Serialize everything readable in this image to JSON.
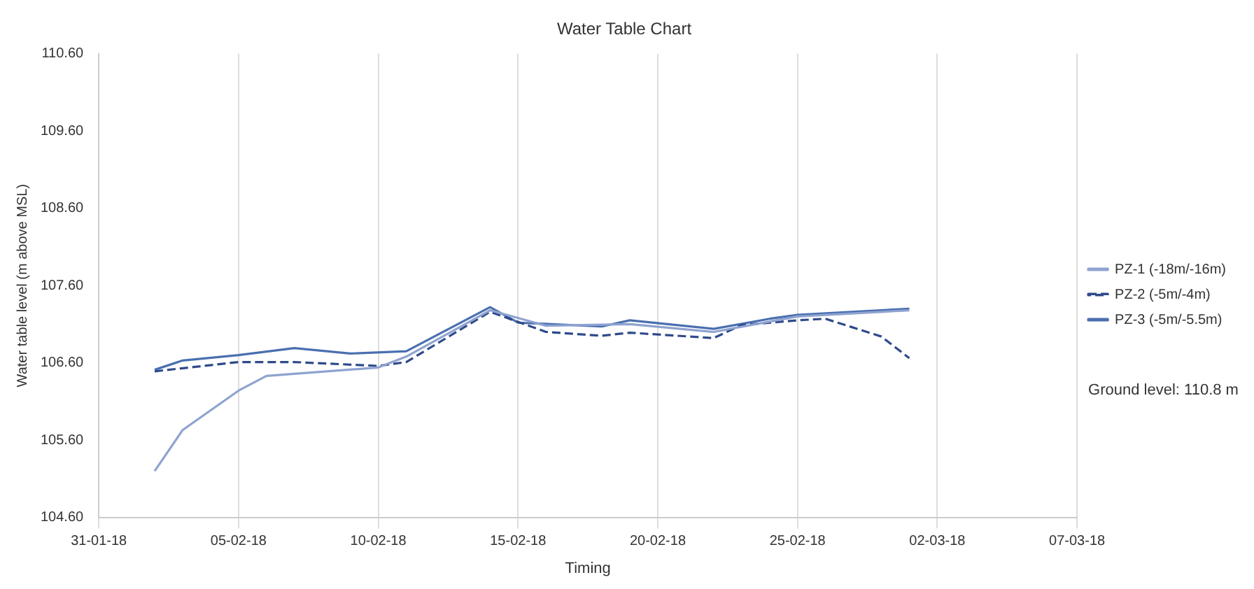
{
  "chart_data": {
    "type": "line",
    "title": "Water Table Chart",
    "xlabel": "Timing",
    "ylabel": "Water table level (m above MSL)",
    "xlim": [
      "--01-31",
      "--03-07"
    ],
    "xticks": [
      {
        "value": "--01-31",
        "label": "31-01-18"
      },
      {
        "value": "--02-05",
        "label": "05-02-18"
      },
      {
        "value": "--02-10",
        "label": "10-02-18"
      },
      {
        "value": "--02-15",
        "label": "15-02-18"
      },
      {
        "value": "--02-20",
        "label": "20-02-18"
      },
      {
        "value": "--02-25",
        "label": "25-02-18"
      },
      {
        "value": "--03-02",
        "label": "02-03-18"
      },
      {
        "value": "--03-07",
        "label": "07-03-18"
      }
    ],
    "ylim": [
      104.6,
      110.6
    ],
    "yticks": [
      {
        "value": 104.6,
        "label": "104.60"
      },
      {
        "value": 105.6,
        "label": "105.60"
      },
      {
        "value": 106.6,
        "label": "106.60"
      },
      {
        "value": 107.6,
        "label": "107.60"
      },
      {
        "value": 108.6,
        "label": "108.60"
      },
      {
        "value": 109.6,
        "label": "109.60"
      },
      {
        "value": 110.6,
        "label": "110.60"
      }
    ],
    "grid": "x",
    "legend": "right",
    "marker": "none",
    "annotations": [
      "Ground level: 110.8 m"
    ],
    "series": [
      {
        "name": "PZ-1 (-18m/-16m)",
        "color": "#8fa3d0",
        "line_style": "solid",
        "x": [
          "--02-02",
          "--02-03",
          "--02-05",
          "--02-06",
          "--02-10",
          "--02-11",
          "--02-14",
          "--02-16",
          "--02-19",
          "--02-22",
          "--02-25",
          "--03-01"
        ],
        "values": [
          105.2,
          105.73,
          106.24,
          106.43,
          106.54,
          106.68,
          107.28,
          107.08,
          107.1,
          107.0,
          107.2,
          107.28
        ]
      },
      {
        "name": "PZ-2 (-5m/-4m)",
        "color": "#2f4a8a",
        "line_style": "dashed",
        "x": [
          "--02-02",
          "--02-05",
          "--02-07",
          "--02-10",
          "--02-11",
          "--02-14",
          "--02-16",
          "--02-18",
          "--02-19",
          "--02-22",
          "--02-23",
          "--02-25",
          "--02-26",
          "--02-28",
          "--03-01"
        ],
        "values": [
          106.49,
          106.61,
          106.61,
          106.56,
          106.61,
          107.26,
          107.0,
          106.95,
          106.99,
          106.92,
          107.09,
          107.15,
          107.17,
          106.94,
          106.66
        ]
      },
      {
        "name": "PZ-3 (-5m/-5.5m)",
        "color": "#4a6fb0",
        "line_style": "solid",
        "x": [
          "--02-02",
          "--02-03",
          "--02-05",
          "--02-07",
          "--02-09",
          "--02-11",
          "--02-14",
          "--02-15",
          "--02-18",
          "--02-19",
          "--02-22",
          "--02-24",
          "--02-25",
          "--03-01"
        ],
        "values": [
          106.51,
          106.63,
          106.7,
          106.79,
          106.72,
          106.75,
          107.32,
          107.12,
          107.07,
          107.15,
          107.04,
          107.17,
          107.22,
          107.3
        ]
      }
    ]
  }
}
